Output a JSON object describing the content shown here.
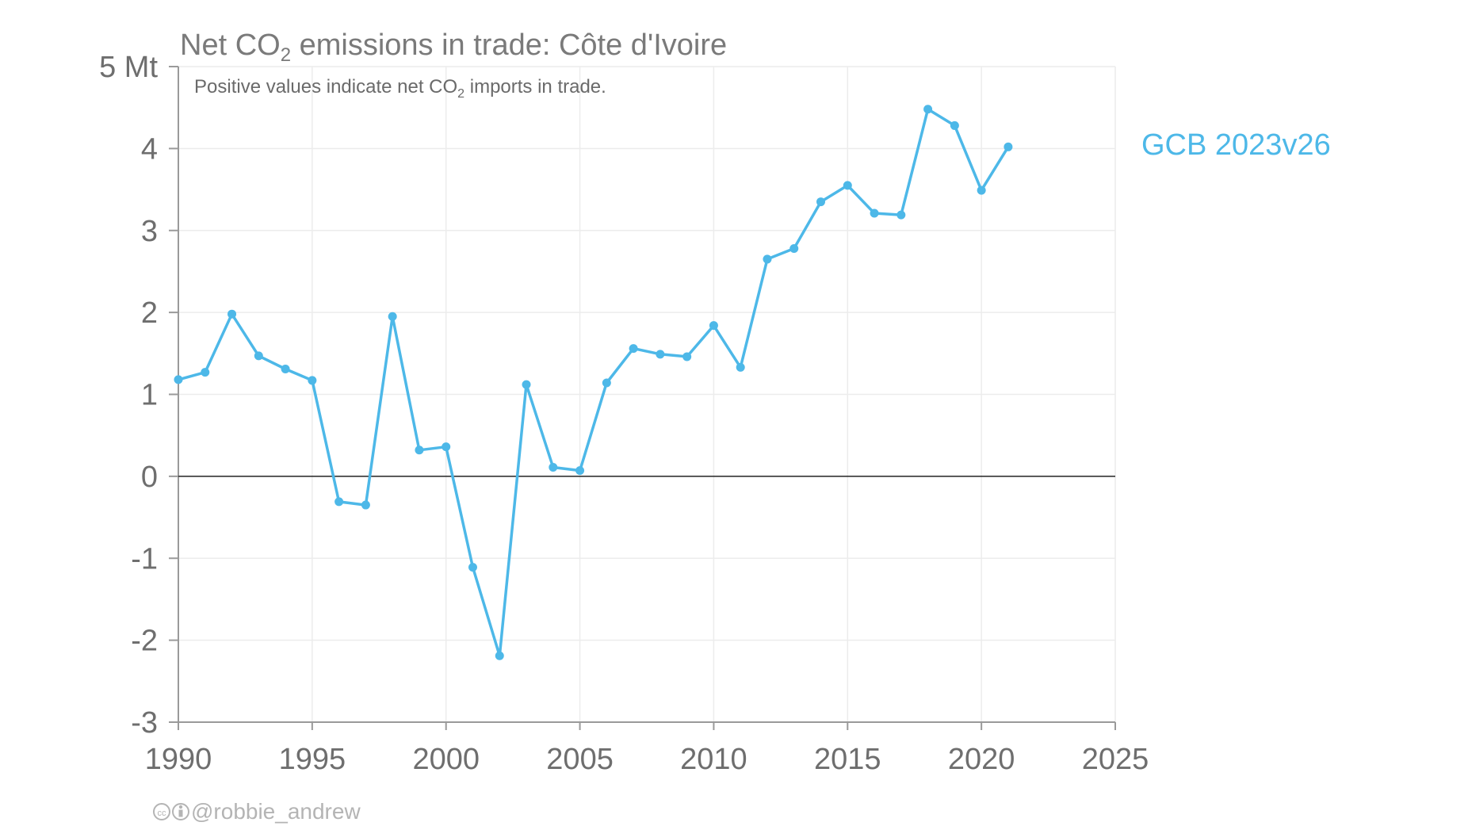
{
  "chart_data": {
    "type": "line",
    "title": {
      "pre": "Net CO",
      "sub": "2",
      "post": " emissions in trade: Côte d'Ivoire"
    },
    "subtitle": {
      "pre": "Positive values indicate net CO",
      "sub": "2",
      "post": " imports in trade."
    },
    "y_unit": "Mt",
    "ylim": [
      -3,
      5
    ],
    "xlim": [
      1990,
      2025
    ],
    "y_ticks": [
      -3,
      -2,
      -1,
      0,
      1,
      2,
      3,
      4,
      5
    ],
    "y_tick_labels": [
      "-3",
      "-2",
      "-1",
      "0",
      "1",
      "2",
      "3",
      "4",
      "5 Mt"
    ],
    "x_ticks": [
      1990,
      1995,
      2000,
      2005,
      2010,
      2015,
      2020,
      2025
    ],
    "x_tick_labels": [
      "1990",
      "1995",
      "2000",
      "2005",
      "2010",
      "2015",
      "2020",
      "2025"
    ],
    "grid": true,
    "zero_line": true,
    "series": [
      {
        "name": "GCB 2023v26",
        "color": "#4db8e8",
        "x": [
          1990,
          1991,
          1992,
          1993,
          1994,
          1995,
          1996,
          1997,
          1998,
          1999,
          2000,
          2001,
          2002,
          2003,
          2004,
          2005,
          2006,
          2007,
          2008,
          2009,
          2010,
          2011,
          2012,
          2013,
          2014,
          2015,
          2016,
          2017,
          2018,
          2019,
          2020,
          2021
        ],
        "values": [
          1.18,
          1.27,
          1.98,
          1.47,
          1.31,
          1.17,
          -0.31,
          -0.35,
          1.95,
          0.32,
          0.36,
          -1.11,
          -2.19,
          1.12,
          0.11,
          0.07,
          1.14,
          1.56,
          1.49,
          1.46,
          1.84,
          1.33,
          2.65,
          2.78,
          3.35,
          3.55,
          3.21,
          3.19,
          4.48,
          4.28,
          3.49,
          4.02
        ]
      }
    ],
    "legend_position": "right"
  },
  "credit": "@robbie_andrew"
}
